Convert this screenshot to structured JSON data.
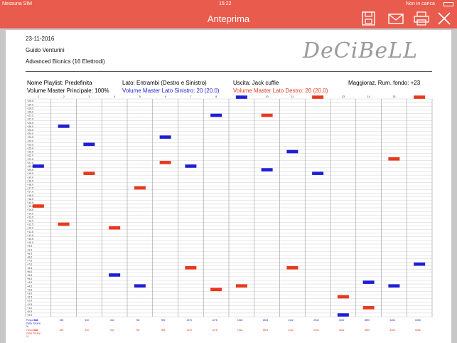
{
  "status_bar": {
    "carrier": "Nessuna SIM",
    "time": "15:22",
    "battery": "Non in carica"
  },
  "navbar": {
    "title": "Anteprima",
    "icons": [
      "save-icon",
      "mail-icon",
      "print-icon",
      "close-icon"
    ]
  },
  "report": {
    "date": "23-11-2016",
    "patient": "Guido Venturini",
    "device": "Advanced Bionics (16 Elettrodi)",
    "logo": "DeCiBeLL",
    "playlist": "Nome Playlist: Predefinita",
    "side": "Lato: Entrambi (Destro e Sinistro)",
    "output": "Uscita: Jack cuffie",
    "noise_boost": "Maggioraz. Rum. fondo: +23",
    "master_volume": "Volume Master Principale: 100%",
    "master_left": "Volume Master Lato Sinistro: 20 (20.0)",
    "master_right": "Volume Master Lato Destro: 20 (20.0)"
  },
  "colors": {
    "accent": "#e95b4c",
    "left": "#1f1fd6",
    "right": "#e8391e",
    "grid": "#cfcfcf"
  },
  "chart_data": {
    "type": "scatter",
    "electrodes": [
      "1",
      "2",
      "3",
      "4",
      "5",
      "6",
      "7",
      "8",
      "9",
      "10",
      "11",
      "12",
      "13",
      "14",
      "15",
      "16"
    ],
    "y_ticks": [
      "+29.5",
      "+29.0",
      "+28.5",
      "+28.0",
      "+27.5",
      "+27.0",
      "+26.5",
      "+26.0",
      "+25.5",
      "+25.0",
      "+24.5",
      "+24.0",
      "+23.5",
      "+23.0",
      "+22.5",
      "+22.0",
      "+21.5",
      "+21.0",
      "+20.5",
      "+20.0",
      "+19.5",
      "+19.0",
      "+18.5",
      "+18.0",
      "+17.5",
      "+17.0",
      "+16.5",
      "+16.0",
      "+15.5",
      "+15.0",
      "+14.5",
      "+14.0",
      "+13.5",
      "+13.0",
      "+12.5",
      "+12.0",
      "+11.5",
      "+11.0",
      "+10.5",
      "+10.0",
      "+9.5",
      "+9.0",
      "+8.5",
      "+8.0",
      "+7.5",
      "+7.0",
      "+6.5",
      "+6.0",
      "+5.5",
      "+5.0",
      "+4.5",
      "+4.0",
      "+3.5",
      "+3.0",
      "+2.5",
      "+2.0",
      "+1.5",
      "+1.0",
      "+0.5",
      "+0.0"
    ],
    "ylim": [
      0,
      29.5
    ],
    "series": [
      {
        "name": "Sinistro",
        "color": "#1f1fd6",
        "values": [
          20.5,
          26.0,
          23.5,
          5.5,
          4.0,
          24.5,
          20.5,
          27.5,
          30.0,
          20.0,
          22.5,
          19.5,
          0.0,
          4.5,
          4.0,
          7.0
        ]
      },
      {
        "name": "Destro",
        "color": "#e8391e",
        "values": [
          15.0,
          12.5,
          19.5,
          12.0,
          17.5,
          21.0,
          6.5,
          3.5,
          4.0,
          27.5,
          6.5,
          30.0,
          2.5,
          1.0,
          21.5,
          30.0
        ]
      }
    ]
  },
  "table": {
    "left_labels": [
      "Frequenza",
      "Delta Volume",
      "%"
    ],
    "right_labels": [
      "Frequenza",
      "Delta Volume",
      "%"
    ],
    "freqs": [
      "333",
      "455",
      "540",
      "642",
      "762",
      "906",
      "1076",
      "1278",
      "1518",
      "1803",
      "2142",
      "2544",
      "3022",
      "3590",
      "4264",
      "6066"
    ]
  }
}
